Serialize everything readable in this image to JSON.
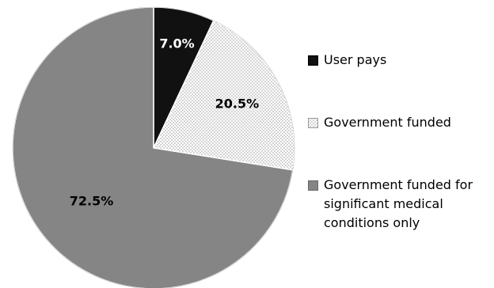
{
  "chart_data": {
    "type": "pie",
    "categories": [
      "User pays",
      "Government funded",
      "Government funded for significant medical conditions only"
    ],
    "values": [
      7.0,
      20.5,
      72.5
    ],
    "data_labels": [
      "7.0%",
      "20.5%",
      "72.5%"
    ],
    "legend_position": "right",
    "colors": [
      "#111111",
      "#f4f4f4",
      "#858585"
    ],
    "label_colors": [
      "#ffffff",
      "#000000",
      "#000000"
    ]
  }
}
